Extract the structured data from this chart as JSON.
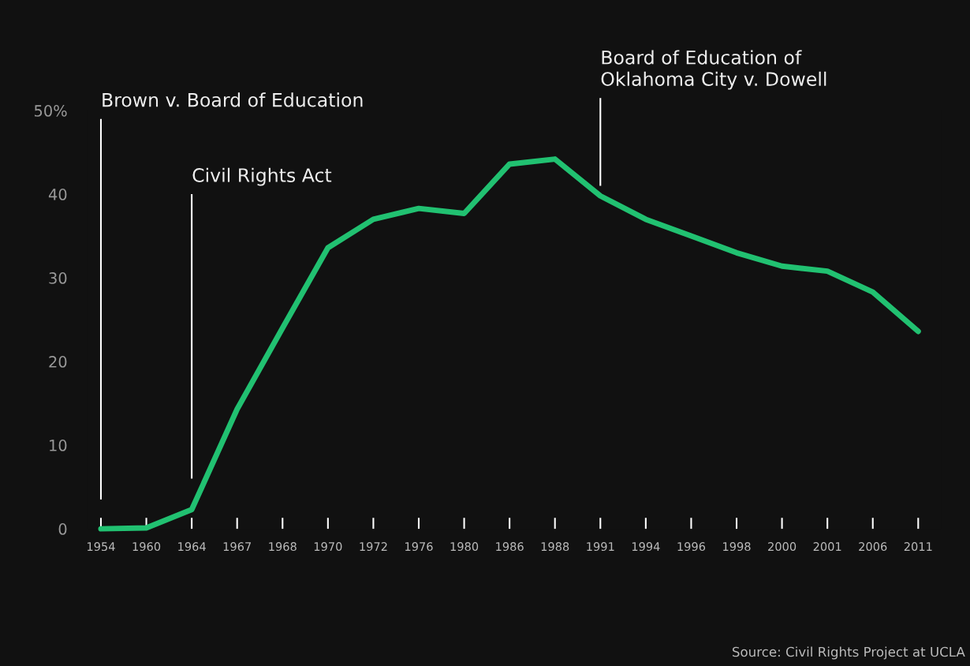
{
  "chart_data": {
    "type": "line",
    "categories": [
      "1954",
      "1960",
      "1964",
      "1967",
      "1968",
      "1970",
      "1972",
      "1976",
      "1980",
      "1986",
      "1988",
      "1991",
      "1994",
      "1996",
      "1998",
      "2000",
      "2001",
      "2006",
      "2011"
    ],
    "series": [
      {
        "color": "#21c171",
        "values": [
          0,
          0.1,
          2.3,
          14.3,
          24,
          33.6,
          37,
          38.3,
          37.7,
          43.6,
          44.2,
          39.8,
          37.0,
          35.0,
          33.0,
          31.4,
          30.8,
          28.3,
          23.6
        ]
      }
    ],
    "ylim": [
      0,
      50
    ],
    "yticks": [
      0,
      10,
      20,
      30,
      40,
      {
        "value": 50,
        "label": "50%"
      }
    ],
    "grid": false,
    "legend": false,
    "marker": "none",
    "line_style": "solid",
    "ref_lines": [
      {
        "axis": "x",
        "value": "1954",
        "label": "Brown v. Board of Education",
        "color": "#ffffff"
      },
      {
        "axis": "x",
        "value": "1964",
        "label": "Civil Rights Act",
        "color": "#ffffff"
      },
      {
        "axis": "x",
        "value": "1991",
        "label": "Board of Education of\nOklahoma City v. Dowell",
        "color": "#ffffff"
      }
    ],
    "annotations": [
      "Source: Civil Rights Project at UCLA"
    ]
  }
}
